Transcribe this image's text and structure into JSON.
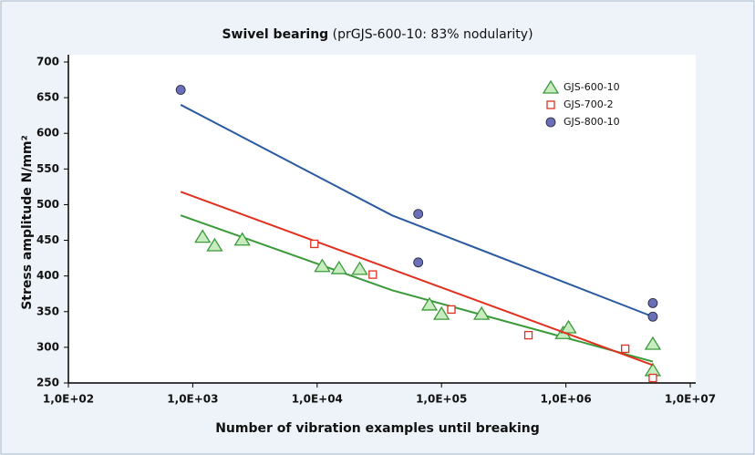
{
  "chart_data": {
    "type": "scatter",
    "title": "Swivel bearing",
    "subtitle": "(prGJS-600-10: 83% nodularity)",
    "x_label": "Number of vibration examples until breaking",
    "y_label": "Stress amplitude N/mm²",
    "xscale": "log",
    "xlim": [
      100,
      10000000
    ],
    "ylim": [
      250,
      700
    ],
    "xticks": [
      {
        "value": 100,
        "label": "1,0E+02"
      },
      {
        "value": 1000,
        "label": "1,0E+03"
      },
      {
        "value": 10000,
        "label": "1,0E+04"
      },
      {
        "value": 100000,
        "label": "1,0E+05"
      },
      {
        "value": 1000000,
        "label": "1,0E+06"
      },
      {
        "value": 10000000,
        "label": "1,0E+07"
      }
    ],
    "yticks": [
      250,
      300,
      350,
      400,
      450,
      500,
      550,
      600,
      650,
      700
    ],
    "legend": "top-right",
    "series": [
      {
        "name": "GJS-600-10",
        "color": "#3a9a3a",
        "marker": "triangle",
        "x": [
          1200,
          1500,
          2500,
          11000,
          15000,
          22000,
          80000,
          100000,
          210000,
          950000,
          1050000,
          5000000,
          5000000
        ],
        "values": [
          455,
          443,
          451,
          414,
          411,
          410,
          360,
          347,
          347,
          320,
          328,
          305,
          268
        ],
        "fit_x": [
          800,
          40000,
          5000000
        ],
        "fit_values": [
          485,
          380,
          280
        ]
      },
      {
        "name": "GJS-700-2",
        "color": "#e03020",
        "marker": "square",
        "x": [
          9500,
          28000,
          120000,
          500000,
          3000000,
          5000000
        ],
        "values": [
          445,
          402,
          353,
          317,
          298,
          257
        ],
        "fit_x": [
          800,
          5000000
        ],
        "fit_values": [
          518,
          275
        ]
      },
      {
        "name": "GJS-800-10",
        "color": "#2a5aa0",
        "marker": "circle",
        "x": [
          800,
          65000,
          65000,
          5000000,
          5000000
        ],
        "values": [
          661,
          487,
          419,
          362,
          343
        ],
        "fit_x": [
          800,
          40000,
          5000000
        ],
        "fit_values": [
          640,
          485,
          343
        ]
      }
    ]
  }
}
